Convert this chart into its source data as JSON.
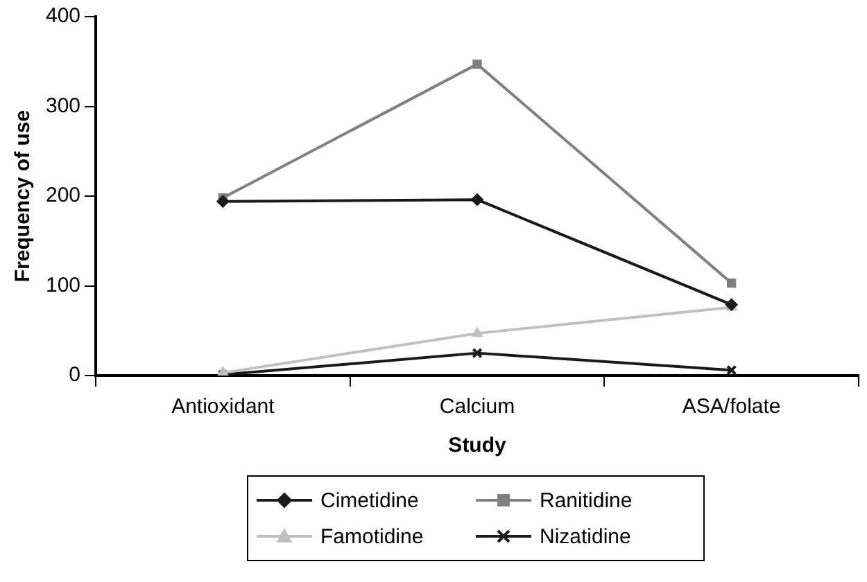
{
  "chart_data": {
    "type": "line",
    "xlabel": "Study",
    "ylabel": "Frequency of use",
    "categories": [
      "Antioxidant",
      "Calcium",
      "ASA/folate"
    ],
    "series": [
      {
        "name": "Cimetidine",
        "color": "#1a1a1a",
        "marker": "diamond",
        "values": [
          194,
          196,
          79
        ]
      },
      {
        "name": "Ranitidine",
        "color": "#808080",
        "marker": "square",
        "values": [
          198,
          347,
          103
        ]
      },
      {
        "name": "Famotidine",
        "color": "#c0c0c0",
        "marker": "triangle",
        "values": [
          3,
          47,
          76
        ]
      },
      {
        "name": "Nizatidine",
        "color": "#1a1a1a",
        "marker": "cross",
        "values": [
          1,
          25,
          6
        ]
      }
    ],
    "ylim": [
      0,
      400
    ],
    "yticks": [
      0,
      100,
      200,
      300,
      400
    ],
    "grid": false,
    "legend": "bottom"
  }
}
